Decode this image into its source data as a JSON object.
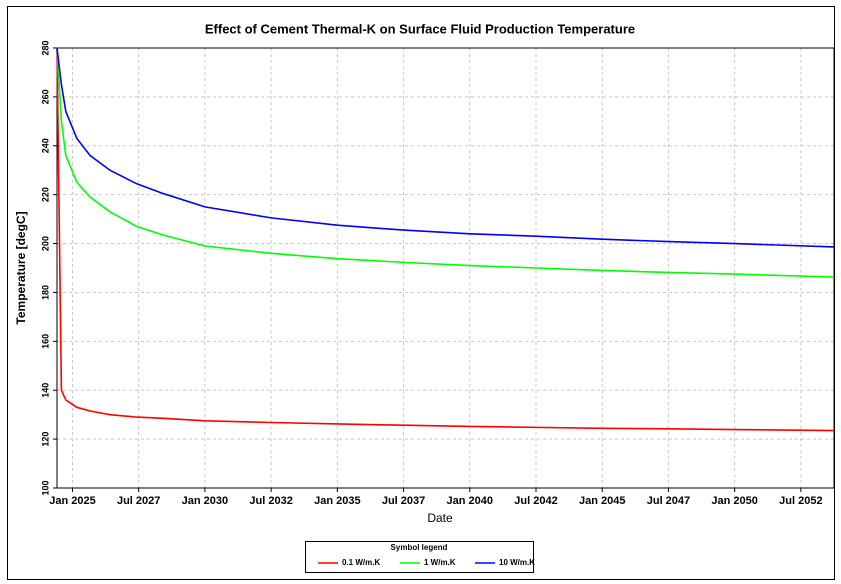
{
  "chart_data": {
    "type": "line",
    "title": "Effect of Cement Thermal-K on Surface Fluid Production Temperature",
    "x_label": "Date",
    "y_label": "Temperature [degC]",
    "legend_title": "Symbol legend",
    "x": [
      "2024-06",
      "2024-08",
      "2024-10",
      "2025-03",
      "2025-09",
      "2026-06",
      "2027-06",
      "2028-06",
      "2030-01",
      "2032-07",
      "2035-01",
      "2037-07",
      "2040-01",
      "2042-07",
      "2045-01",
      "2047-07",
      "2050-01",
      "2053-10"
    ],
    "series": [
      {
        "name": "0.1 W/m.K",
        "color": "#ff0000",
        "values": [
          280,
          140,
          136,
          133,
          131.5,
          130,
          129,
          128.5,
          127.5,
          126.8,
          126.2,
          125.7,
          125.2,
          124.8,
          124.4,
          124.2,
          123.9,
          123.5
        ]
      },
      {
        "name": "1 W/m.K",
        "color": "#00ff00",
        "values": [
          280,
          250,
          236,
          225,
          219,
          213,
          207,
          203.5,
          199,
          196,
          193.8,
          192.3,
          191,
          190,
          189,
          188.2,
          187.5,
          186.3
        ]
      },
      {
        "name": "10 W/m.K",
        "color": "#0000ff",
        "values": [
          280,
          265,
          254,
          243,
          236,
          230,
          224.5,
          220.5,
          215,
          210.5,
          207.5,
          205.5,
          204,
          203,
          201.8,
          200.8,
          200,
          198.6
        ]
      }
    ],
    "xlim": [
      "2024-06",
      "2053-10"
    ],
    "xticks": [
      {
        "value": "2025-01",
        "label": "Jan 2025"
      },
      {
        "value": "2027-07",
        "label": "Jul 2027"
      },
      {
        "value": "2030-01",
        "label": "Jan 2030"
      },
      {
        "value": "2032-07",
        "label": "Jul 2032"
      },
      {
        "value": "2035-01",
        "label": "Jan 2035"
      },
      {
        "value": "2037-07",
        "label": "Jul 2037"
      },
      {
        "value": "2040-01",
        "label": "Jan 2040"
      },
      {
        "value": "2042-07",
        "label": "Jul 2042"
      },
      {
        "value": "2045-01",
        "label": "Jan 2045"
      },
      {
        "value": "2047-07",
        "label": "Jul 2047"
      },
      {
        "value": "2050-01",
        "label": "Jan 2050"
      },
      {
        "value": "2052-07",
        "label": "Jul 2052"
      }
    ],
    "ylim": [
      100,
      280
    ],
    "yticks": [
      100,
      120,
      140,
      160,
      180,
      200,
      220,
      240,
      260,
      280
    ],
    "grid": true,
    "legend_position": "bottom"
  }
}
